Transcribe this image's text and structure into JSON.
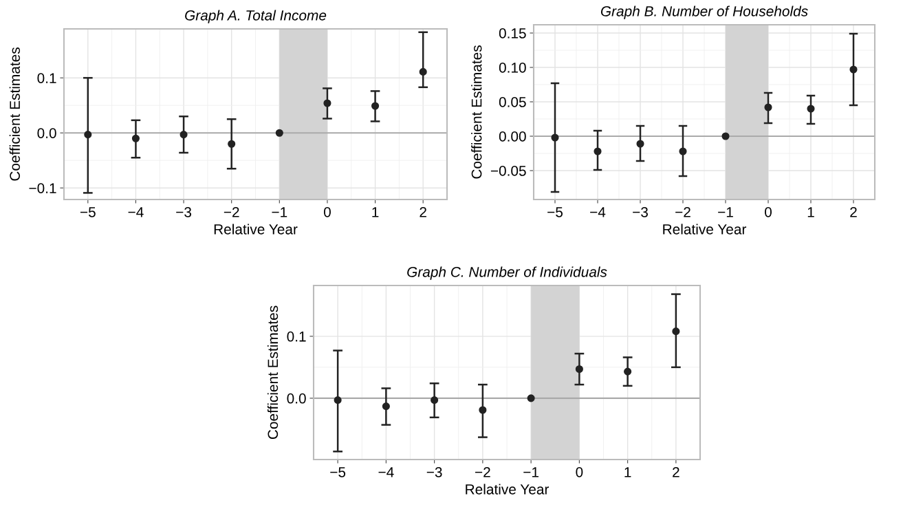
{
  "chart_data": [
    {
      "type": "scatter",
      "title": "Graph A. Total Income",
      "xlabel": "Relative Year",
      "ylabel": "Coefficient Estimates",
      "x": [
        -5,
        -4,
        -3,
        -2,
        -1,
        0,
        1,
        2
      ],
      "series": [
        {
          "color": "#222222",
          "values": [
            -0.003,
            -0.01,
            -0.003,
            -0.02,
            0,
            0.054,
            0.049,
            0.111
          ],
          "errors": [
            [
              -0.109,
              0.1
            ],
            [
              -0.045,
              0.023
            ],
            [
              -0.036,
              0.03
            ],
            [
              -0.065,
              0.025
            ],
            null,
            [
              0.026,
              0.081
            ],
            [
              0.021,
              0.076
            ],
            [
              0.083,
              0.183
            ]
          ]
        }
      ],
      "xlim": [
        -5.5,
        2.5
      ],
      "xticks": [
        {
          "value": -5,
          "label": "−5"
        },
        {
          "value": -4,
          "label": "−4"
        },
        {
          "value": -3,
          "label": "−3"
        },
        {
          "value": -2,
          "label": "−2"
        },
        {
          "value": -1,
          "label": "−1"
        },
        0,
        1,
        2
      ],
      "ylim": [
        -0.121,
        0.189
      ],
      "yticks": [
        {
          "value": -0.1,
          "label": "−0.1"
        },
        {
          "value": 0,
          "label": "0.0"
        },
        {
          "value": 0.1,
          "label": "0.1"
        }
      ],
      "ref_lines": [
        {
          "axis": "y",
          "value": 0,
          "color": "#aaaaaa"
        }
      ],
      "bands": [
        {
          "axis": "x",
          "from": -1,
          "to": 0,
          "color": "#d3d3d3"
        }
      ],
      "grid": true,
      "marker": "circle"
    },
    {
      "type": "scatter",
      "title": "Graph B. Number of Households",
      "xlabel": "Relative Year",
      "ylabel": "Coefficient Estimates",
      "x": [
        -5,
        -4,
        -3,
        -2,
        -1,
        0,
        1,
        2
      ],
      "series": [
        {
          "color": "#222222",
          "values": [
            -0.002,
            -0.022,
            -0.011,
            -0.022,
            0,
            0.042,
            0.04,
            0.097
          ],
          "errors": [
            [
              -0.081,
              0.077
            ],
            [
              -0.049,
              0.008
            ],
            [
              -0.036,
              0.015
            ],
            [
              -0.058,
              0.015
            ],
            null,
            [
              0.019,
              0.063
            ],
            [
              0.018,
              0.059
            ],
            [
              0.045,
              0.149
            ]
          ]
        }
      ],
      "xlim": [
        -5.5,
        2.5
      ],
      "xticks": [
        {
          "value": -5,
          "label": "−5"
        },
        {
          "value": -4,
          "label": "−4"
        },
        {
          "value": -3,
          "label": "−3"
        },
        {
          "value": -2,
          "label": "−2"
        },
        {
          "value": -1,
          "label": "−1"
        },
        0,
        1,
        2
      ],
      "ylim": [
        -0.092,
        0.162
      ],
      "yticks": [
        {
          "value": -0.05,
          "label": "−0.05"
        },
        {
          "value": 0,
          "label": "0.00"
        },
        {
          "value": 0.05,
          "label": "0.05"
        },
        {
          "value": 0.1,
          "label": "0.10"
        },
        {
          "value": 0.15,
          "label": "0.15"
        }
      ],
      "ref_lines": [
        {
          "axis": "y",
          "value": 0,
          "color": "#aaaaaa"
        }
      ],
      "bands": [
        {
          "axis": "x",
          "from": -1,
          "to": 0,
          "color": "#d3d3d3"
        }
      ],
      "grid": true,
      "marker": "circle"
    },
    {
      "type": "scatter",
      "title": "Graph C. Number of Individuals",
      "xlabel": "Relative Year",
      "ylabel": "Coefficient Estimates",
      "x": [
        -5,
        -4,
        -3,
        -2,
        -1,
        0,
        1,
        2
      ],
      "series": [
        {
          "color": "#222222",
          "values": [
            -0.003,
            -0.013,
            -0.003,
            -0.019,
            0,
            0.047,
            0.043,
            0.108
          ],
          "errors": [
            [
              -0.086,
              0.077
            ],
            [
              -0.043,
              0.016
            ],
            [
              -0.031,
              0.024
            ],
            [
              -0.063,
              0.022
            ],
            null,
            [
              0.022,
              0.072
            ],
            [
              0.02,
              0.066
            ],
            [
              0.05,
              0.168
            ]
          ]
        }
      ],
      "xlim": [
        -5.5,
        2.5
      ],
      "xticks": [
        {
          "value": -5,
          "label": "−5"
        },
        {
          "value": -4,
          "label": "−4"
        },
        {
          "value": -3,
          "label": "−3"
        },
        {
          "value": -2,
          "label": "−2"
        },
        {
          "value": -1,
          "label": "−1"
        },
        0,
        1,
        2
      ],
      "ylim": [
        -0.099,
        0.182
      ],
      "yticks": [
        {
          "value": 0,
          "label": "0.0"
        },
        {
          "value": 0.1,
          "label": "0.1"
        }
      ],
      "ref_lines": [
        {
          "axis": "y",
          "value": 0,
          "color": "#aaaaaa"
        }
      ],
      "bands": [
        {
          "axis": "x",
          "from": -1,
          "to": 0,
          "color": "#d3d3d3"
        }
      ],
      "grid": true,
      "marker": "circle"
    }
  ]
}
